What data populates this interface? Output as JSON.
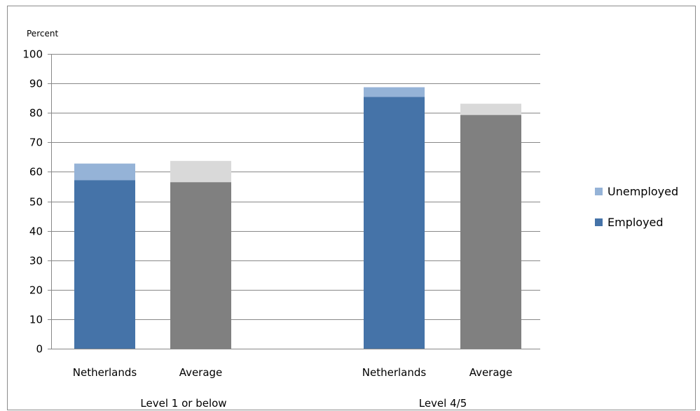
{
  "chart_data": {
    "type": "bar",
    "stacked": true,
    "ylabel": "Percent",
    "ylim": [
      0,
      100
    ],
    "yticks": [
      0,
      10,
      20,
      30,
      40,
      50,
      60,
      70,
      80,
      90,
      100
    ],
    "grid": true,
    "legend_position": "right",
    "groups": [
      {
        "label": "Level 1 or below",
        "bars": [
          {
            "category": "Netherlands",
            "employed": 57.2,
            "unemployed": 5.6,
            "style": "netherlands"
          },
          {
            "category": "Average",
            "employed": 56.5,
            "unemployed": 7.2,
            "style": "average"
          }
        ]
      },
      {
        "label": "Level 4/5",
        "bars": [
          {
            "category": "Netherlands",
            "employed": 85.4,
            "unemployed": 3.3,
            "style": "netherlands"
          },
          {
            "category": "Average",
            "employed": 79.3,
            "unemployed": 3.8,
            "style": "average"
          }
        ]
      }
    ],
    "legend": [
      {
        "name": "Unemployed",
        "color": "#95b3d7"
      },
      {
        "name": "Employed",
        "color": "#4573a8"
      }
    ],
    "colors": {
      "netherlands_employed": "#4573a8",
      "netherlands_unemployed": "#95b3d7",
      "average_employed": "#808080",
      "average_unemployed": "#d9d9d9",
      "grid": "#888888"
    }
  }
}
